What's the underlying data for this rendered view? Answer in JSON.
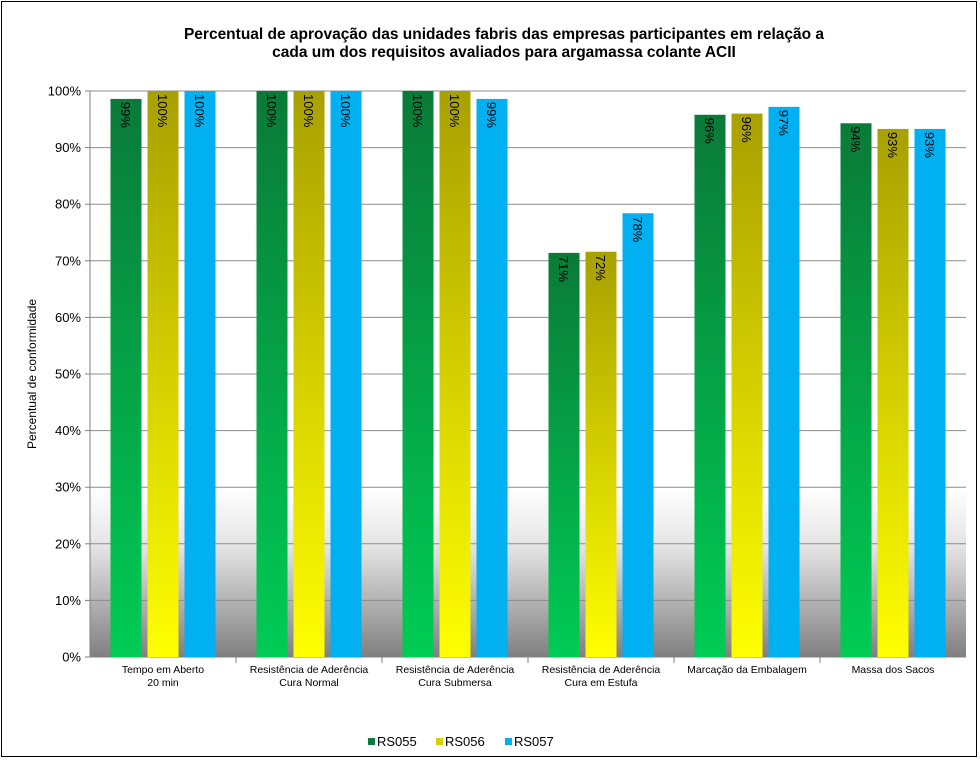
{
  "chart_data": {
    "type": "bar",
    "title_lines": [
      "Percentual de aprovação das unidades fabris das empresas participantes em relação a",
      "cada um dos requisitos avaliados para argamassa colante ACII"
    ],
    "ylabel": "Percentual de conformidade",
    "xlabel": "",
    "ylim": [
      0,
      100
    ],
    "yticks": [
      0,
      10,
      20,
      30,
      40,
      50,
      60,
      70,
      80,
      90,
      100
    ],
    "ytick_labels": [
      "0%",
      "10%",
      "20%",
      "30%",
      "40%",
      "50%",
      "60%",
      "70%",
      "80%",
      "90%",
      "100%"
    ],
    "grid": true,
    "legend_position": "bottom",
    "categories": [
      [
        "Tempo em Aberto",
        "20 min"
      ],
      [
        "Resistência de Aderência",
        "Cura Normal"
      ],
      [
        "Resistência de Aderência",
        "Cura Submersa"
      ],
      [
        "Resistência de Aderência",
        "Cura em Estufa"
      ],
      [
        "Marcação da Embalagem"
      ],
      [
        "Massa dos Sacos"
      ]
    ],
    "series": [
      {
        "name": "RS055",
        "values": [
          98.6,
          100,
          100,
          71.4,
          95.8,
          94.3
        ],
        "labels": [
          "99%",
          "100%",
          "100%",
          "71%",
          "96%",
          "94%"
        ],
        "color_top": "#0a7a38",
        "color_bottom": "#00cc55",
        "legend_color": "#0b7a3a"
      },
      {
        "name": "RS056",
        "values": [
          100,
          100,
          100,
          71.6,
          96.0,
          93.3
        ],
        "labels": [
          "100%",
          "100%",
          "100%",
          "72%",
          "96%",
          "93%"
        ],
        "color_top": "#a8a000",
        "color_bottom": "#ffff00",
        "legend_color": "#d8d000"
      },
      {
        "name": "RS057",
        "values": [
          100,
          100,
          98.6,
          78.4,
          97.2,
          93.3
        ],
        "labels": [
          "100%",
          "100%",
          "99%",
          "78%",
          "97%",
          "93%"
        ],
        "color_top": "#00b0f0",
        "color_bottom": "#00b0f0",
        "legend_color": "#00b0f0"
      }
    ],
    "plot_background": "lower band shaded with white-to-grey gradient"
  }
}
